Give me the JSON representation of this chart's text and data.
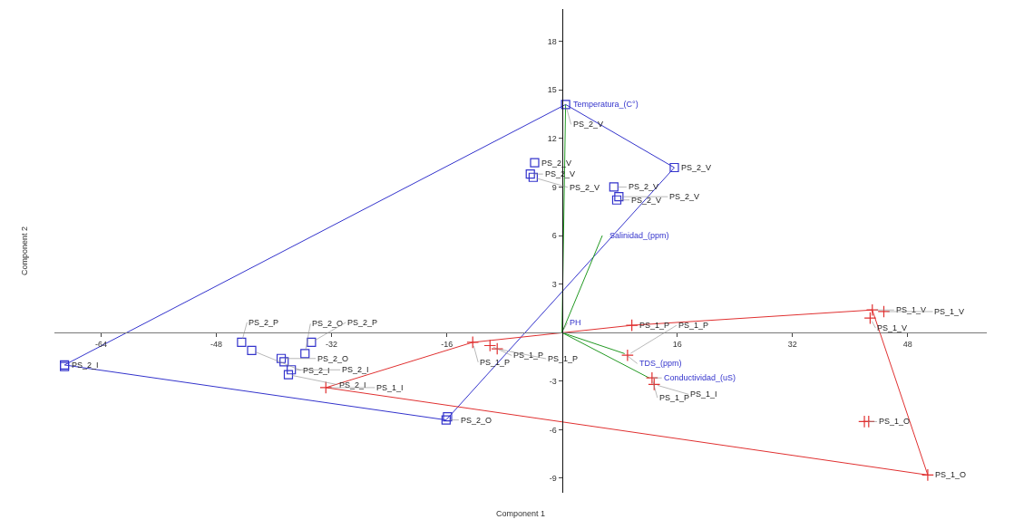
{
  "chart_data": {
    "type": "scatter",
    "xlabel": "Component 1",
    "ylabel": "Component 2",
    "xlim": [
      -70.5,
      59
    ],
    "ylim": [
      -9.9,
      20
    ],
    "xticks": [
      -64,
      -48,
      -32,
      -16,
      16,
      32,
      48
    ],
    "yticks": [
      -9,
      -6,
      -3,
      3,
      6,
      9,
      12,
      15,
      18
    ],
    "series": [
      {
        "type": "line",
        "color": "#3333cc",
        "marker": "none",
        "x": [
          -69.1,
          0.5
        ],
        "values": [
          -2.0,
          14.1
        ]
      },
      {
        "type": "line",
        "color": "#3333cc",
        "marker": "none",
        "x": [
          0.5,
          15.6
        ],
        "values": [
          14.1,
          10.2
        ]
      },
      {
        "type": "line",
        "color": "#3333cc",
        "marker": "none",
        "x": [
          -16.1,
          15.6
        ],
        "values": [
          -5.4,
          10.2
        ]
      },
      {
        "type": "line",
        "color": "#3333cc",
        "marker": "none",
        "x": [
          -69.1,
          -16.1
        ],
        "values": [
          -2.0,
          -5.4
        ]
      },
      {
        "type": "line",
        "color": "#e03030",
        "marker": "none",
        "x": [
          -32.8,
          -12.4
        ],
        "values": [
          -3.4,
          -0.6
        ]
      },
      {
        "type": "line",
        "color": "#e03030",
        "marker": "none",
        "x": [
          -12.4,
          9.7
        ],
        "values": [
          -0.6,
          0.45
        ]
      },
      {
        "type": "line",
        "color": "#e03030",
        "marker": "none",
        "x": [
          9.7,
          43.1
        ],
        "values": [
          0.45,
          1.4
        ]
      },
      {
        "type": "line",
        "color": "#e03030",
        "marker": "none",
        "x": [
          43.1,
          50.8
        ],
        "values": [
          1.4,
          -8.8
        ]
      },
      {
        "type": "line",
        "color": "#e03030",
        "marker": "none",
        "x": [
          -32.8,
          50.8
        ],
        "values": [
          -3.4,
          -8.8
        ]
      },
      {
        "type": "line",
        "color": "#229922",
        "marker": "none",
        "x": [
          0,
          0.5
        ],
        "values": [
          0,
          14.1
        ]
      },
      {
        "type": "line",
        "color": "#229922",
        "marker": "none",
        "x": [
          0,
          5.6
        ],
        "values": [
          0,
          6.0
        ]
      },
      {
        "type": "line",
        "color": "#229922",
        "marker": "none",
        "x": [
          0,
          8.7
        ],
        "values": [
          0,
          -1.3
        ]
      },
      {
        "type": "line",
        "color": "#229922",
        "marker": "none",
        "x": [
          0,
          12.1
        ],
        "values": [
          0,
          -2.8
        ]
      },
      {
        "color": "#3333cc",
        "marker": "square",
        "x": [
          -69.1,
          -69.1,
          -44.5,
          -43.1,
          -39.0,
          -38.6,
          -37.6,
          -38.0,
          -35.7,
          -34.8,
          -16.1,
          -15.9,
          -3.8,
          -4.4,
          -4.0,
          0.5,
          15.6,
          7.2,
          7.9,
          7.6
        ],
        "values": [
          -2.0,
          -2.1,
          -0.6,
          -1.1,
          -1.6,
          -1.8,
          -2.3,
          -2.6,
          -1.3,
          -0.6,
          -5.4,
          -5.2,
          10.5,
          9.8,
          9.6,
          14.1,
          10.2,
          9.0,
          8.4,
          8.2
        ]
      },
      {
        "color": "#e03030",
        "marker": "cross",
        "x": [
          -32.8,
          -12.4,
          -10.0,
          -9.0,
          9.7,
          9.1,
          12.5,
          12.8,
          43.1,
          42.8,
          44.7,
          42.0,
          42.6,
          50.8
        ],
        "values": [
          -3.4,
          -0.6,
          -0.8,
          -1.0,
          0.45,
          -1.4,
          -2.8,
          -3.2,
          1.4,
          0.9,
          1.3,
          -5.5,
          -5.5,
          -8.8
        ]
      }
    ],
    "annotations": [
      {
        "text": "Temperatura_(C°)",
        "x": 0.5,
        "y": 14.1
      },
      {
        "text": "Salinidad_(ppm)",
        "x": 5.6,
        "y": 6.0
      },
      {
        "text": "TDS_(ppm)",
        "x": 8.7,
        "y": -1.3
      },
      {
        "text": "Conductividad_(uS)",
        "x": 12.1,
        "y": -2.8
      },
      {
        "text": "PH",
        "x": 0,
        "y": 0
      },
      {
        "text": "PS_2_I",
        "x": -69.1,
        "y": -2.0
      },
      {
        "text": "PS_2_P",
        "x": -44.5,
        "y": -0.6
      },
      {
        "text": "PS_2_I",
        "x": -43.1,
        "y": -1.1
      },
      {
        "text": "PS_2_O",
        "x": -39.0,
        "y": -1.6
      },
      {
        "text": "PS_2_I",
        "x": -37.6,
        "y": -2.3
      },
      {
        "text": "PS_2_I",
        "x": -38.0,
        "y": -2.6
      },
      {
        "text": "PS_2_O",
        "x": -35.7,
        "y": -1.3
      },
      {
        "text": "PS_2_P",
        "x": -34.8,
        "y": -0.6
      },
      {
        "text": "PS_2_O",
        "x": -16.1,
        "y": -5.4
      },
      {
        "text": "PS_2_V",
        "x": -3.8,
        "y": 10.5
      },
      {
        "text": "PS_2_V",
        "x": -4.4,
        "y": 9.8
      },
      {
        "text": "PS_2_V",
        "x": -4.0,
        "y": 9.6
      },
      {
        "text": "PS_2_V",
        "x": 0.5,
        "y": 14.1
      },
      {
        "text": "PS_2_V",
        "x": 15.6,
        "y": 10.2
      },
      {
        "text": "PS_2_V",
        "x": 7.2,
        "y": 9.0
      },
      {
        "text": "PS_2_V",
        "x": 7.9,
        "y": 8.4
      },
      {
        "text": "PS_2_V",
        "x": 7.6,
        "y": 8.2
      },
      {
        "text": "PS_1_I",
        "x": -32.8,
        "y": -3.4
      },
      {
        "text": "PS_1_P",
        "x": -12.4,
        "y": -0.6
      },
      {
        "text": "PS_1_P",
        "x": -10.0,
        "y": -0.8
      },
      {
        "text": "PS_1_P",
        "x": -9.0,
        "y": -1.0
      },
      {
        "text": "PS_1_P",
        "x": 9.7,
        "y": 0.45
      },
      {
        "text": "PS_1_P",
        "x": 9.1,
        "y": -1.4
      },
      {
        "text": "PS_1_P",
        "x": 12.5,
        "y": -2.8
      },
      {
        "text": "PS_1_I",
        "x": 12.8,
        "y": -3.2
      },
      {
        "text": "PS_1_V",
        "x": 43.1,
        "y": 1.4
      },
      {
        "text": "PS_1_V",
        "x": 42.8,
        "y": 0.9
      },
      {
        "text": "PS_1_V",
        "x": 44.7,
        "y": 1.3
      },
      {
        "text": "PS_1_O",
        "x": 42.0,
        "y": -5.5
      },
      {
        "text": "PS_1_O",
        "x": 50.8,
        "y": -8.8
      }
    ]
  }
}
